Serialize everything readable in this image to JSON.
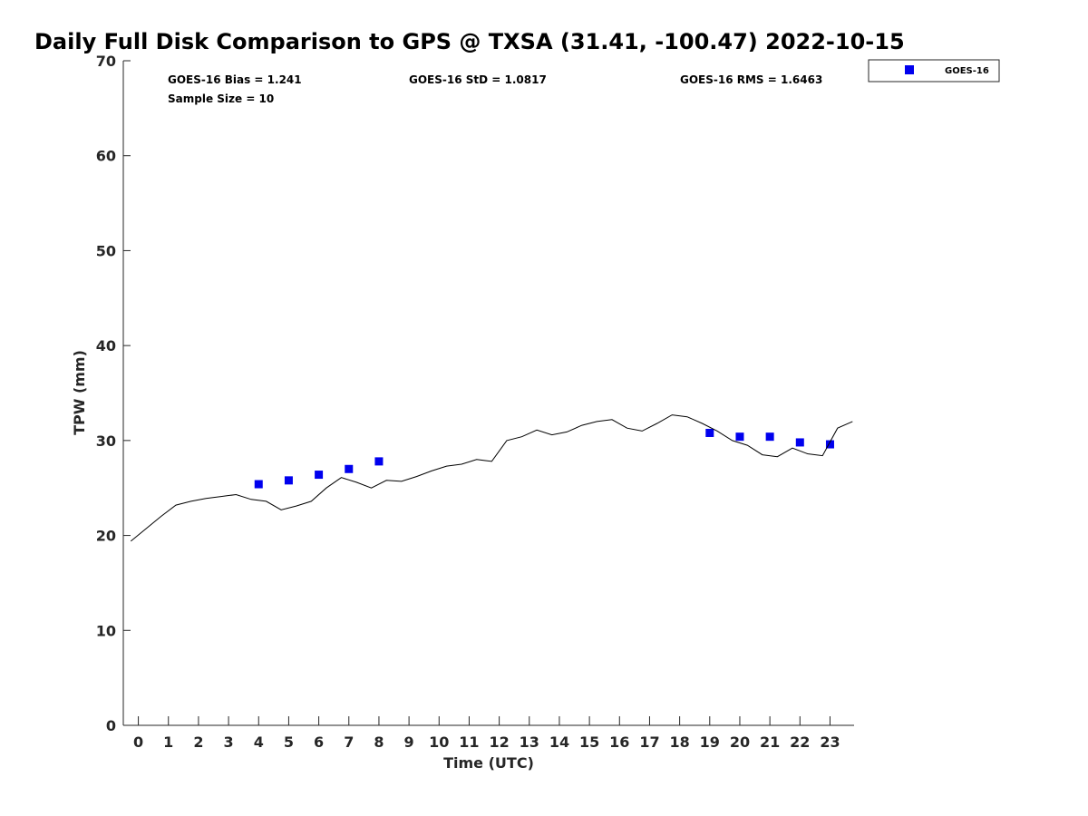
{
  "chart_data": {
    "type": "scatter",
    "title": "Daily Full Disk Comparison to GPS @ TXSA (31.41, -100.47) 2022-10-15",
    "xlabel": "Time (UTC)",
    "ylabel": "TPW (mm)",
    "xlim": [
      -0.5,
      23.8
    ],
    "ylim": [
      0,
      70
    ],
    "xticks": [
      0,
      1,
      2,
      3,
      4,
      5,
      6,
      7,
      8,
      9,
      10,
      11,
      12,
      13,
      14,
      15,
      16,
      17,
      18,
      19,
      20,
      21,
      22,
      23
    ],
    "xtick_labels": [
      "0",
      "1",
      "2",
      "3",
      "4",
      "5",
      "6",
      "7",
      "8",
      "9",
      "10",
      "11",
      "12",
      "13",
      "14",
      "15",
      "16",
      "17",
      "18",
      "19",
      "20",
      "21",
      "22",
      "23"
    ],
    "yticks": [
      0,
      10,
      20,
      30,
      40,
      50,
      60,
      70
    ],
    "ytick_labels": [
      "0",
      "10",
      "20",
      "30",
      "40",
      "50",
      "60",
      "70"
    ],
    "grid": false,
    "legend_position": "top-right",
    "stats": {
      "bias": "GOES-16 Bias = 1.241",
      "std": "GOES-16 StD = 1.0817",
      "rms": "GOES-16 RMS = 1.6463",
      "sample_size": "Sample Size = 10"
    },
    "series": [
      {
        "name": "GOES-16",
        "kind": "markers",
        "color": "#0000ee",
        "points": [
          [
            4.0,
            25.4
          ],
          [
            5.0,
            25.8
          ],
          [
            6.0,
            26.4
          ],
          [
            7.0,
            27.0
          ],
          [
            8.0,
            27.8
          ],
          [
            19.0,
            30.8
          ],
          [
            20.0,
            30.4
          ],
          [
            21.0,
            30.4
          ],
          [
            22.0,
            29.8
          ],
          [
            23.0,
            29.6
          ]
        ]
      },
      {
        "kind": "line",
        "color": "#000000",
        "points": [
          [
            -0.25,
            19.4
          ],
          [
            0.25,
            20.7
          ],
          [
            0.75,
            22.0
          ],
          [
            1.25,
            23.2
          ],
          [
            1.75,
            23.6
          ],
          [
            2.25,
            23.9
          ],
          [
            2.75,
            24.1
          ],
          [
            3.25,
            24.3
          ],
          [
            3.75,
            23.8
          ],
          [
            4.25,
            23.6
          ],
          [
            4.75,
            22.7
          ],
          [
            5.25,
            23.1
          ],
          [
            5.75,
            23.6
          ],
          [
            6.25,
            25.0
          ],
          [
            6.75,
            26.1
          ],
          [
            7.25,
            25.6
          ],
          [
            7.75,
            25.0
          ],
          [
            8.25,
            25.8
          ],
          [
            8.75,
            25.7
          ],
          [
            9.25,
            26.2
          ],
          [
            9.75,
            26.8
          ],
          [
            10.25,
            27.3
          ],
          [
            10.75,
            27.5
          ],
          [
            11.25,
            28.0
          ],
          [
            11.75,
            27.8
          ],
          [
            12.25,
            30.0
          ],
          [
            12.75,
            30.4
          ],
          [
            13.25,
            31.1
          ],
          [
            13.75,
            30.6
          ],
          [
            14.25,
            30.9
          ],
          [
            14.75,
            31.6
          ],
          [
            15.25,
            32.0
          ],
          [
            15.75,
            32.2
          ],
          [
            16.25,
            31.3
          ],
          [
            16.75,
            31.0
          ],
          [
            17.25,
            31.8
          ],
          [
            17.75,
            32.7
          ],
          [
            18.25,
            32.5
          ],
          [
            18.75,
            31.8
          ],
          [
            19.25,
            31.0
          ],
          [
            19.75,
            30.0
          ],
          [
            20.25,
            29.5
          ],
          [
            20.75,
            28.5
          ],
          [
            21.25,
            28.3
          ],
          [
            21.75,
            29.2
          ],
          [
            22.25,
            28.6
          ],
          [
            22.75,
            28.4
          ],
          [
            23.25,
            31.3
          ],
          [
            23.75,
            32.0
          ]
        ]
      }
    ]
  }
}
